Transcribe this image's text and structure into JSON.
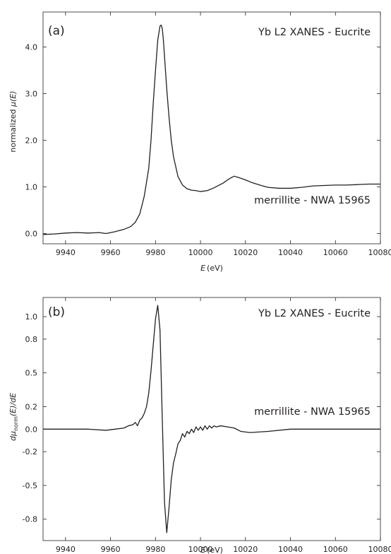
{
  "chart_data": [
    {
      "type": "line",
      "panel_label": "(a)",
      "annotation_top": "Yb L2 XANES - Eucrite",
      "annotation_series": "merrillite - NWA 15965",
      "xlabel_var": "E",
      "xlabel_unit": "(eV)",
      "ylabel_prefix": "normalized ",
      "ylabel_var": "μ(E)",
      "xlim": [
        9930,
        10080
      ],
      "ylim": [
        -0.22,
        4.75
      ],
      "xticks": [
        9940,
        9960,
        9980,
        10000,
        10020,
        10040,
        10060,
        10080
      ],
      "xtick_labels": [
        "9940",
        "9960",
        "9980",
        "10000",
        "10020",
        "10040",
        "10060",
        "10080"
      ],
      "yticks": [
        0,
        1,
        2,
        3,
        4
      ],
      "ytick_labels": [
        "0.0",
        "1.0",
        "2.0",
        "3.0",
        "4.0"
      ],
      "line_color": "#231f20",
      "series": [
        {
          "x": [
            9930,
            9935,
            9940,
            9945,
            9950,
            9955,
            9958,
            9962,
            9966,
            9969,
            9971,
            9973,
            9975,
            9977,
            9978,
            9979,
            9980,
            9981,
            9982,
            9982.5,
            9983,
            9983.5,
            9984,
            9985,
            9986,
            9987,
            9988,
            9990,
            9992,
            9994,
            9996,
            9998,
            10000,
            10003,
            10006,
            10010,
            10013,
            10015,
            10017,
            10020,
            10023,
            10027,
            10030,
            10035,
            10040,
            10045,
            10050,
            10055,
            10060,
            10065,
            10070,
            10075,
            10080
          ],
          "y": [
            -0.02,
            -0.01,
            0.01,
            0.02,
            0.01,
            0.02,
            0.0,
            0.04,
            0.09,
            0.15,
            0.24,
            0.42,
            0.8,
            1.4,
            2.0,
            2.8,
            3.5,
            4.15,
            4.45,
            4.47,
            4.4,
            4.15,
            3.8,
            3.1,
            2.5,
            2.0,
            1.65,
            1.22,
            1.04,
            0.96,
            0.93,
            0.92,
            0.9,
            0.92,
            0.98,
            1.08,
            1.18,
            1.23,
            1.2,
            1.15,
            1.09,
            1.03,
            0.99,
            0.97,
            0.97,
            0.99,
            1.02,
            1.03,
            1.04,
            1.04,
            1.05,
            1.06,
            1.06
          ]
        }
      ]
    },
    {
      "type": "line",
      "panel_label": "(b)",
      "annotation_top": "Yb L2 XANES - Eucrite",
      "annotation_series": "merrillite - NWA 15965",
      "xlabel_var": "E",
      "xlabel_unit": "(eV)",
      "ylabel_d": "d",
      "ylabel_mu": "μ",
      "ylabel_sub": "norm",
      "ylabel_tail": "(E)/dE",
      "xlim": [
        9930,
        10080
      ],
      "ylim": [
        -0.99,
        1.17
      ],
      "xticks": [
        9940,
        9960,
        9980,
        10000,
        10020,
        10040,
        10060,
        10080
      ],
      "xtick_labels": [
        "9940",
        "9960",
        "9980",
        "10000",
        "10020",
        "10040",
        "10060",
        "10080"
      ],
      "yticks": [
        -0.8,
        -0.5,
        -0.2,
        0.0,
        0.2,
        0.5,
        0.8,
        1.0
      ],
      "ytick_labels": [
        "-0.8",
        "-0.5",
        "-0.2",
        "0.0",
        "0.2",
        "0.5",
        "0.8",
        "1.0"
      ],
      "line_color": "#231f20",
      "series": [
        {
          "x": [
            9930,
            9940,
            9950,
            9958,
            9962,
            9966,
            9968,
            9970,
            9971,
            9972,
            9973,
            9974,
            9975,
            9976,
            9977,
            9978,
            9979,
            9980,
            9981,
            9982,
            9983,
            9984,
            9985,
            9986,
            9987,
            9988,
            9989,
            9990,
            9991,
            9992,
            9993,
            9994,
            9995,
            9996,
            9997,
            9998,
            9999,
            10000,
            10001,
            10002,
            10003,
            10004,
            10005,
            10006,
            10007,
            10009,
            10012,
            10015,
            10018,
            10022,
            10030,
            10040,
            10050,
            10060,
            10070,
            10080
          ],
          "y": [
            0.0,
            0.0,
            0.0,
            -0.01,
            0.0,
            0.01,
            0.03,
            0.04,
            0.06,
            0.03,
            0.08,
            0.1,
            0.14,
            0.2,
            0.32,
            0.52,
            0.75,
            0.98,
            1.1,
            0.88,
            0.1,
            -0.65,
            -0.92,
            -0.7,
            -0.45,
            -0.3,
            -0.22,
            -0.13,
            -0.1,
            -0.04,
            -0.07,
            -0.02,
            -0.04,
            0.0,
            -0.03,
            0.02,
            -0.01,
            0.02,
            -0.01,
            0.03,
            0.0,
            0.03,
            0.01,
            0.03,
            0.02,
            0.03,
            0.02,
            0.01,
            -0.02,
            -0.03,
            -0.02,
            0.0,
            0.0,
            0.0,
            0.0,
            0.0
          ]
        }
      ]
    }
  ]
}
